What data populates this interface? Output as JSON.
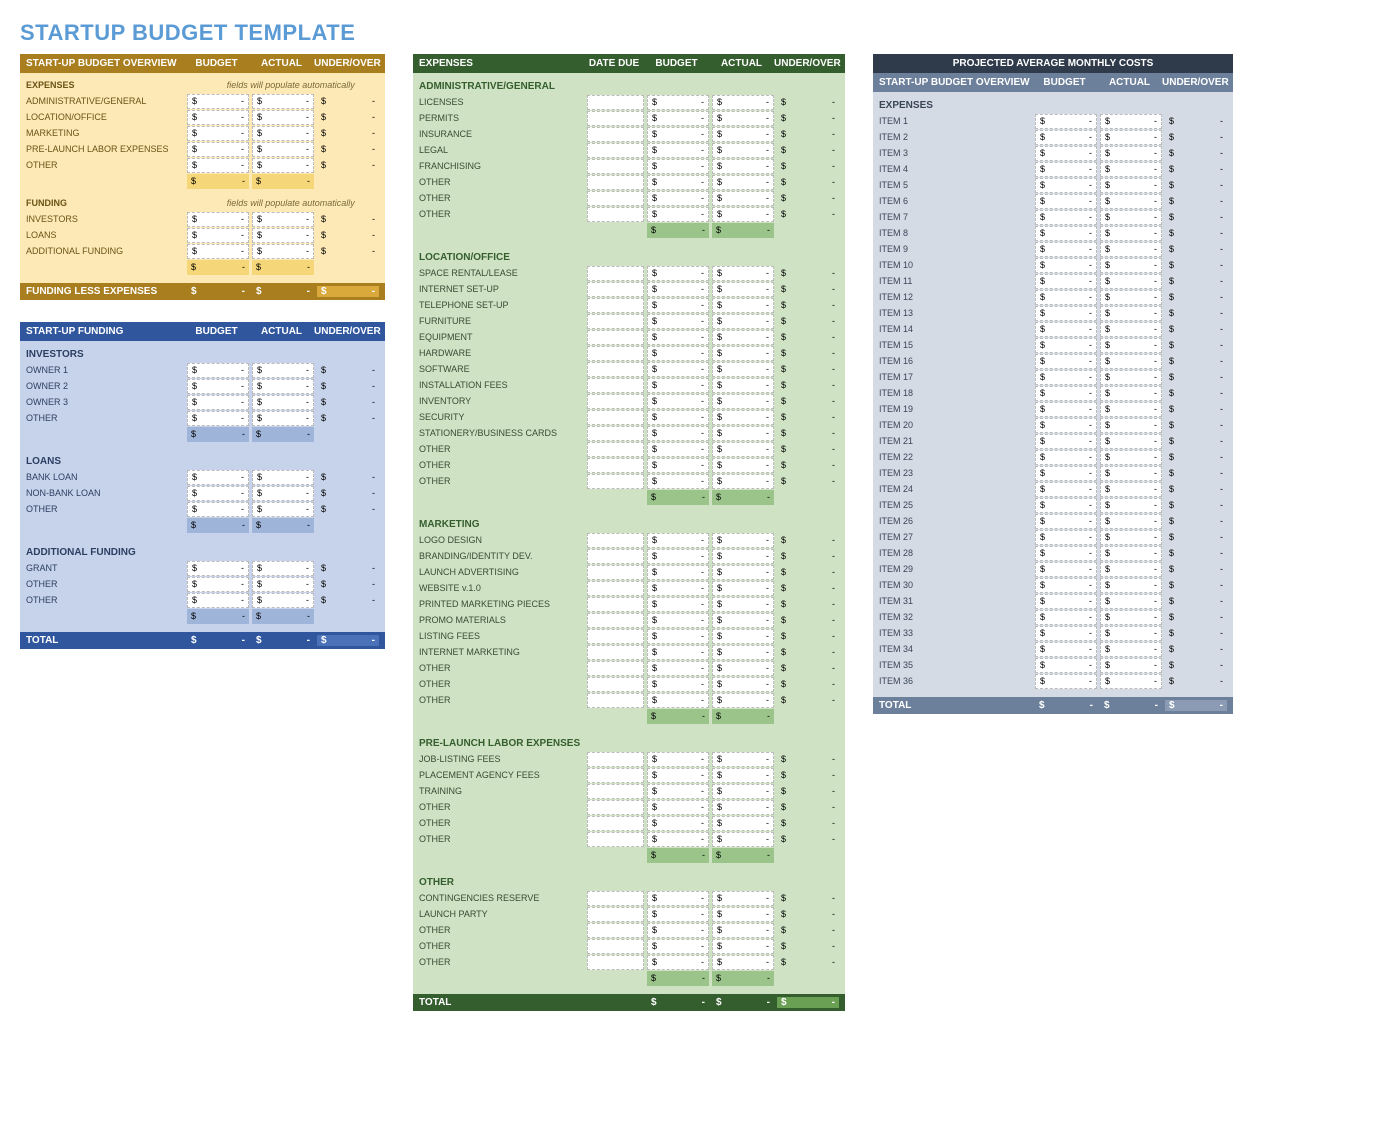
{
  "page": {
    "title": "STARTUP BUDGET TEMPLATE"
  },
  "currency_symbol": "$",
  "dash": "-",
  "columns": {
    "budget": "BUDGET",
    "actual": "ACTUAL",
    "underover": "UNDER/OVER",
    "datedue": "DATE DUE"
  },
  "notes": {
    "auto": "fields will populate automatically"
  },
  "colors": {
    "page_title": "#5b9bd5",
    "overview_header": "#a87e1f",
    "overview_body": "#fde9b6",
    "overview_subtotal": "#f5d678",
    "overview_highlight": "#d9a93c",
    "funding_header": "#30579e",
    "funding_body": "#c7d3ea",
    "funding_subtotal": "#9fb4d9",
    "funding_highlight": "#4a72b8",
    "expenses_header": "#355e2e",
    "expenses_body": "#cfe2c3",
    "expenses_subtotal": "#9bc48b",
    "expenses_highlight": "#6aa053",
    "projected_title_bg": "#2f3b4a",
    "projected_header": "#6d809b",
    "projected_body": "#d5dbe5",
    "projected_highlight": "#8a9bb3",
    "input_border": "#bbbbbb"
  },
  "overview": {
    "title": "START-UP BUDGET OVERVIEW",
    "expenses_label": "EXPENSES",
    "expense_rows": [
      "ADMINISTRATIVE/GENERAL",
      "LOCATION/OFFICE",
      "MARKETING",
      "PRE-LAUNCH LABOR EXPENSES",
      "OTHER"
    ],
    "funding_label": "FUNDING",
    "funding_rows": [
      "INVESTORS",
      "LOANS",
      "ADDITIONAL FUNDING"
    ],
    "footer_label": "FUNDING LESS EXPENSES"
  },
  "funding": {
    "title": "START-UP FUNDING",
    "sections": [
      {
        "title": "INVESTORS",
        "rows": [
          "OWNER 1",
          "OWNER 2",
          "OWNER 3",
          "OTHER"
        ]
      },
      {
        "title": "LOANS",
        "rows": [
          "BANK LOAN",
          "NON-BANK LOAN",
          "OTHER"
        ]
      },
      {
        "title": "ADDITIONAL FUNDING",
        "rows": [
          "GRANT",
          "OTHER",
          "OTHER"
        ]
      }
    ],
    "footer_label": "TOTAL"
  },
  "expenses": {
    "title": "EXPENSES",
    "sections": [
      {
        "title": "ADMINISTRATIVE/GENERAL",
        "rows": [
          "LICENSES",
          "PERMITS",
          "INSURANCE",
          "LEGAL",
          "FRANCHISING",
          "OTHER",
          "OTHER",
          "OTHER"
        ]
      },
      {
        "title": "LOCATION/OFFICE",
        "rows": [
          "SPACE RENTAL/LEASE",
          "INTERNET SET-UP",
          "TELEPHONE SET-UP",
          "FURNITURE",
          "EQUIPMENT",
          "HARDWARE",
          "SOFTWARE",
          "INSTALLATION FEES",
          "INVENTORY",
          "SECURITY",
          "STATIONERY/BUSINESS CARDS",
          "OTHER",
          "OTHER",
          "OTHER"
        ]
      },
      {
        "title": "MARKETING",
        "rows": [
          "LOGO DESIGN",
          "BRANDING/IDENTITY DEV.",
          "LAUNCH ADVERTISING",
          "WEBSITE v.1.0",
          "PRINTED MARKETING PIECES",
          "PROMO MATERIALS",
          "LISTING FEES",
          "INTERNET MARKETING",
          "OTHER",
          "OTHER",
          "OTHER"
        ]
      },
      {
        "title": "PRE-LAUNCH LABOR EXPENSES",
        "rows": [
          "JOB-LISTING FEES",
          "PLACEMENT AGENCY FEES",
          "TRAINING",
          "OTHER",
          "OTHER",
          "OTHER"
        ]
      },
      {
        "title": "OTHER",
        "rows": [
          "CONTINGENCIES RESERVE",
          "LAUNCH PARTY",
          "OTHER",
          "OTHER",
          "OTHER"
        ]
      }
    ],
    "footer_label": "TOTAL"
  },
  "projected": {
    "banner": "PROJECTED AVERAGE MONTHLY COSTS",
    "title": "START-UP BUDGET OVERVIEW",
    "expenses_label": "EXPENSES",
    "rows": [
      "ITEM 1",
      "ITEM 2",
      "ITEM 3",
      "ITEM 4",
      "ITEM 5",
      "ITEM 6",
      "ITEM 7",
      "ITEM 8",
      "ITEM 9",
      "ITEM 10",
      "ITEM 11",
      "ITEM 12",
      "ITEM 13",
      "ITEM 14",
      "ITEM 15",
      "ITEM 16",
      "ITEM 17",
      "ITEM 18",
      "ITEM 19",
      "ITEM 20",
      "ITEM 21",
      "ITEM 22",
      "ITEM 23",
      "ITEM 24",
      "ITEM 25",
      "ITEM 26",
      "ITEM 27",
      "ITEM 28",
      "ITEM 29",
      "ITEM 30",
      "ITEM 31",
      "ITEM 32",
      "ITEM 33",
      "ITEM 34",
      "ITEM 35",
      "ITEM 36"
    ],
    "footer_label": "TOTAL"
  }
}
